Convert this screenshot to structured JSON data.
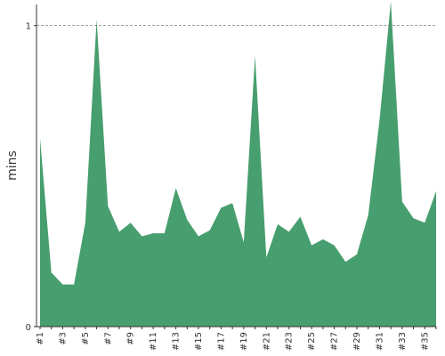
{
  "chart_data": {
    "type": "area",
    "y_label": "mins",
    "categories": [
      "#1",
      null,
      "#3",
      null,
      "#5",
      null,
      "#7",
      null,
      "#9",
      null,
      "#11",
      null,
      "#13",
      null,
      "#15",
      null,
      "#17",
      null,
      "#19",
      null,
      "#21",
      null,
      "#23",
      null,
      "#25",
      null,
      "#27",
      null,
      "#29",
      null,
      "#31",
      null,
      "#33",
      null,
      "#35",
      null
    ],
    "values": [
      0.625,
      0.18,
      0.14,
      0.14,
      0.345,
      1.02,
      0.4,
      0.315,
      0.345,
      0.3,
      0.31,
      0.31,
      0.46,
      0.355,
      0.3,
      0.32,
      0.395,
      0.41,
      0.28,
      0.9,
      0.23,
      0.34,
      0.315,
      0.365,
      0.27,
      0.29,
      0.27,
      0.215,
      0.24,
      0.37,
      0.685,
      1.08,
      0.415,
      0.36,
      0.345,
      0.45
    ],
    "color": "#479e6e",
    "ylim": [
      0,
      1.07
    ],
    "yticks": [
      0,
      1
    ],
    "grid": true
  }
}
